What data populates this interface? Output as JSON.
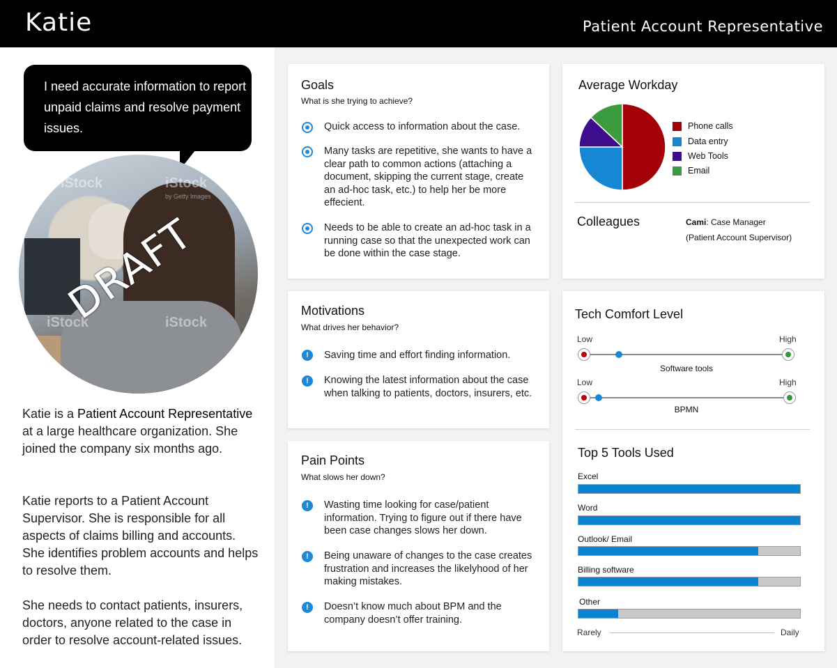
{
  "header": {
    "name": "Katie",
    "role": "Patient Account Representative"
  },
  "quote": "I need accurate information to report unpaid claims and resolve payment issues.",
  "photo": {
    "overlay_text": "DRAFT",
    "watermark": "iStock",
    "watermark_sub": "by Getty Images"
  },
  "bio": [
    {
      "pre": "Katie is a ",
      "strong": "Patient Account Representative",
      "post": " at a large healthcare organization. She joined the company six months ago."
    },
    {
      "text": "Katie reports to a Patient Account Supervisor. She is responsible for all aspects of claims billing and accounts. She identifies problem accounts and helps to resolve them."
    },
    {
      "text": "She needs to contact patients, insurers, doctors, anyone related to the case in order to resolve account-related issues."
    }
  ],
  "goals": {
    "title": "Goals",
    "subtitle": "What is she trying to achieve?",
    "items": [
      "Quick access to information about the case.",
      "Many tasks are repetitive, she wants to have a clear path to common actions (attaching a document, skipping the current stage, create an ad-hoc task, etc.) to help her be more effecient.",
      "Needs to be able to create an ad-hoc task in a running case so that the unexpected work can be done within the case stage."
    ]
  },
  "motivations": {
    "title": "Motivations",
    "subtitle": "What drives her behavior?",
    "items": [
      "Saving time and effort finding information.",
      "Knowing the latest information about the case when talking to patients, doctors, insurers, etc."
    ]
  },
  "pain_points": {
    "title": "Pain Points",
    "subtitle": "What slows her down?",
    "items": [
      "Wasting time looking for case/patient information. Trying to figure out if there have been case changes slows her down.",
      "Being unaware of changes to the case creates frustration and increases the likelyhood of her making mistakes.",
      "Doesn’t know much about BPM and the company doesn’t offer training."
    ]
  },
  "workday": {
    "title": "Average Workday",
    "colors": {
      "phone": "#a30008",
      "data": "#1787d4",
      "web": "#3d0d8c",
      "email": "#3a9c3e"
    },
    "legend": [
      "Phone calls",
      "Data entry",
      "Web Tools",
      "Email"
    ]
  },
  "colleagues": {
    "title": "Colleagues",
    "name": "Cami",
    "role": ": Case Manager",
    "note": "(Patient Account Supervisor)"
  },
  "tech": {
    "title": "Tech Comfort Level",
    "low": "Low",
    "high": "High",
    "sliders": [
      {
        "label": "Software tools",
        "level": 0.17
      },
      {
        "label": "BPMN",
        "level": 0.07
      }
    ]
  },
  "tools": {
    "title": "Top 5 Tools Used",
    "items": [
      {
        "label": "Excel",
        "level": 1.0
      },
      {
        "label": "Word",
        "level": 1.0
      },
      {
        "label": "Outlook/ Email",
        "level": 0.81
      },
      {
        "label": "Billing software",
        "level": 0.81
      },
      {
        "label": "Other",
        "level": 0.18
      }
    ],
    "scale_low": "Rarely",
    "scale_high": "Daily"
  },
  "chart_data": {
    "type": "pie",
    "title": "Average Workday",
    "categories": [
      "Phone calls",
      "Data entry",
      "Web Tools",
      "Email"
    ],
    "values": [
      50,
      25,
      12,
      13
    ]
  }
}
